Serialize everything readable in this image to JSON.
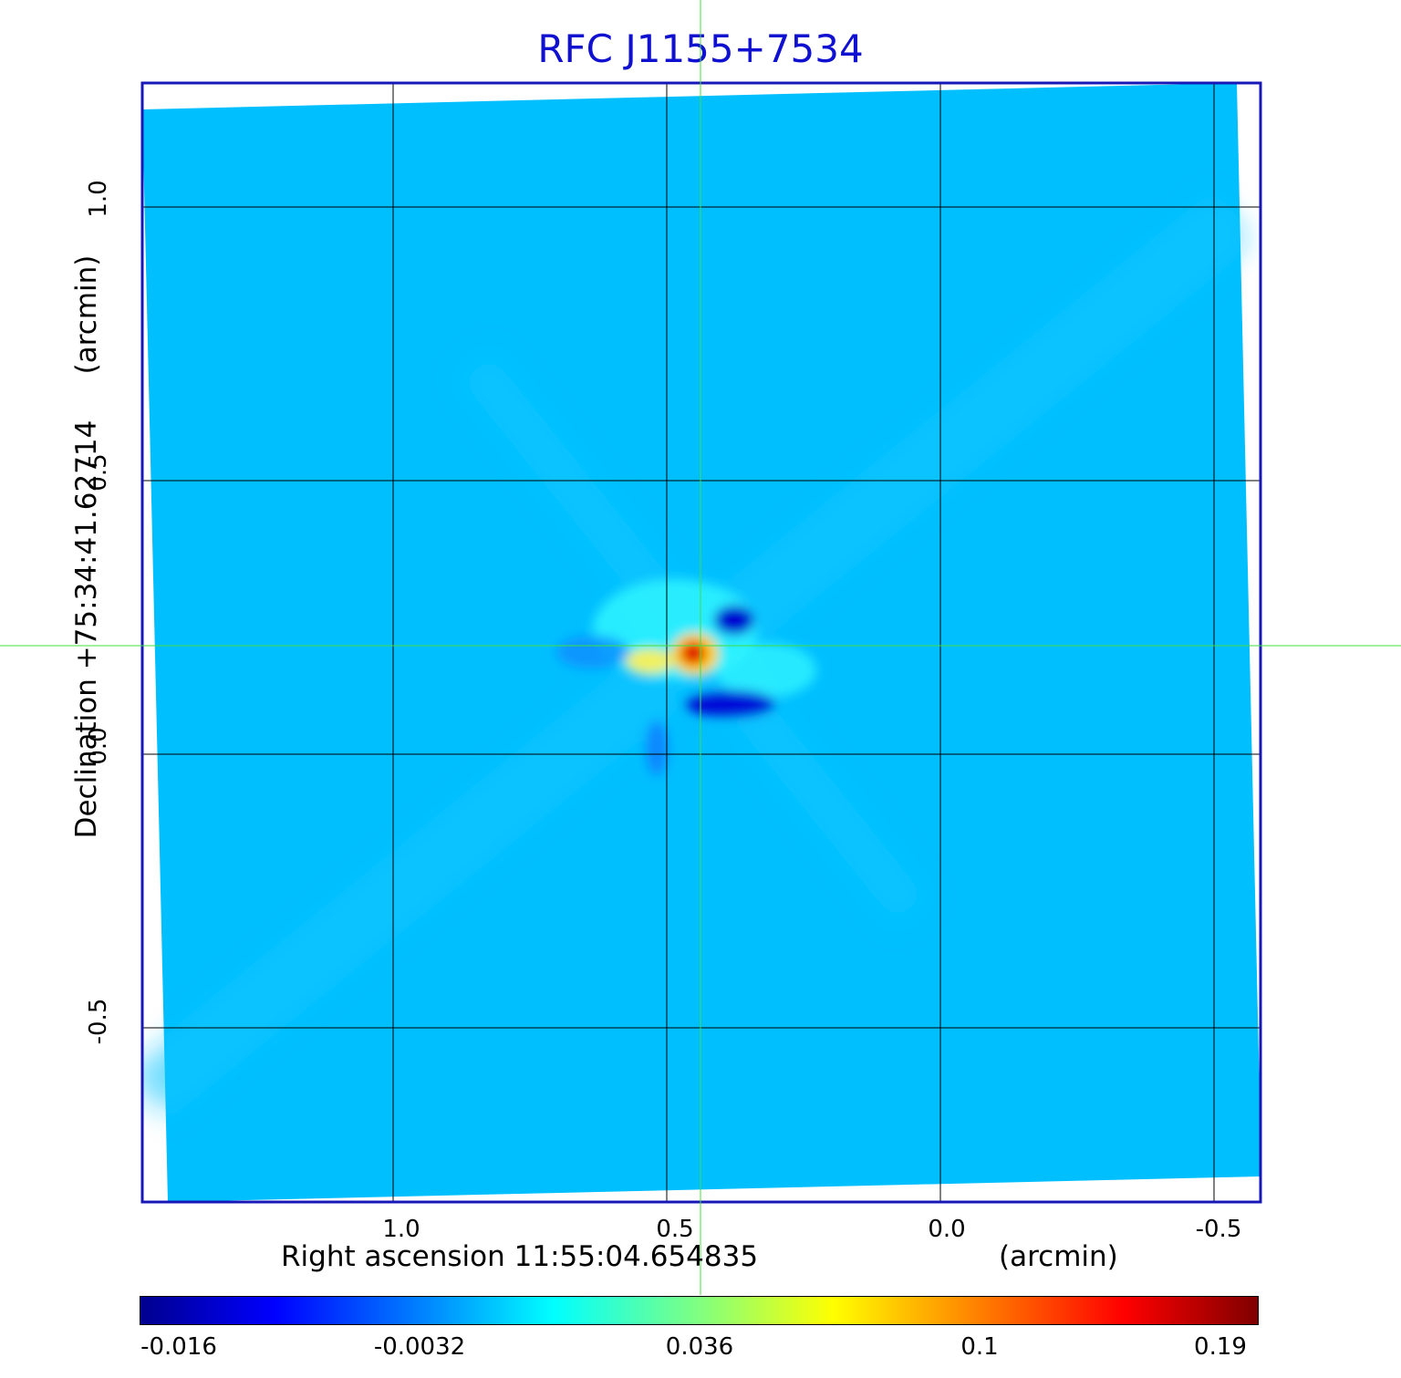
{
  "title": "RFC J1155+7534",
  "title_color": "#1010d0",
  "x_axis": {
    "label": "Right ascension  11:55:04.654835",
    "unit": "(arcmin)",
    "ticks": [
      {
        "label": "1.0",
        "value": 1.0
      },
      {
        "label": "0.5",
        "value": 0.5
      },
      {
        "label": "0.0",
        "value": 0.0
      },
      {
        "label": "-0.5",
        "value": -0.5
      }
    ]
  },
  "y_axis": {
    "label": "Declination  +75:34:41.62714",
    "unit": "(arcmin)",
    "ticks": [
      {
        "label": "1.0",
        "value": 1.0
      },
      {
        "label": "0.5",
        "value": 0.5
      },
      {
        "label": "0.0",
        "value": 0.0
      },
      {
        "label": "-0.5",
        "value": -0.5
      }
    ]
  },
  "colorbar": {
    "colormap": "jet",
    "ticks": [
      {
        "label": "-0.016",
        "fraction": 0.0
      },
      {
        "label": "-0.0032",
        "fraction": 0.25
      },
      {
        "label": "0.036",
        "fraction": 0.5
      },
      {
        "label": "0.1",
        "fraction": 0.75
      },
      {
        "label": "0.19",
        "fraction": 1.0
      }
    ]
  },
  "colors": {
    "frame": "#1818b8",
    "grid": "#000000",
    "crosshair": "#40e040",
    "background_field": "#00bfff"
  }
}
